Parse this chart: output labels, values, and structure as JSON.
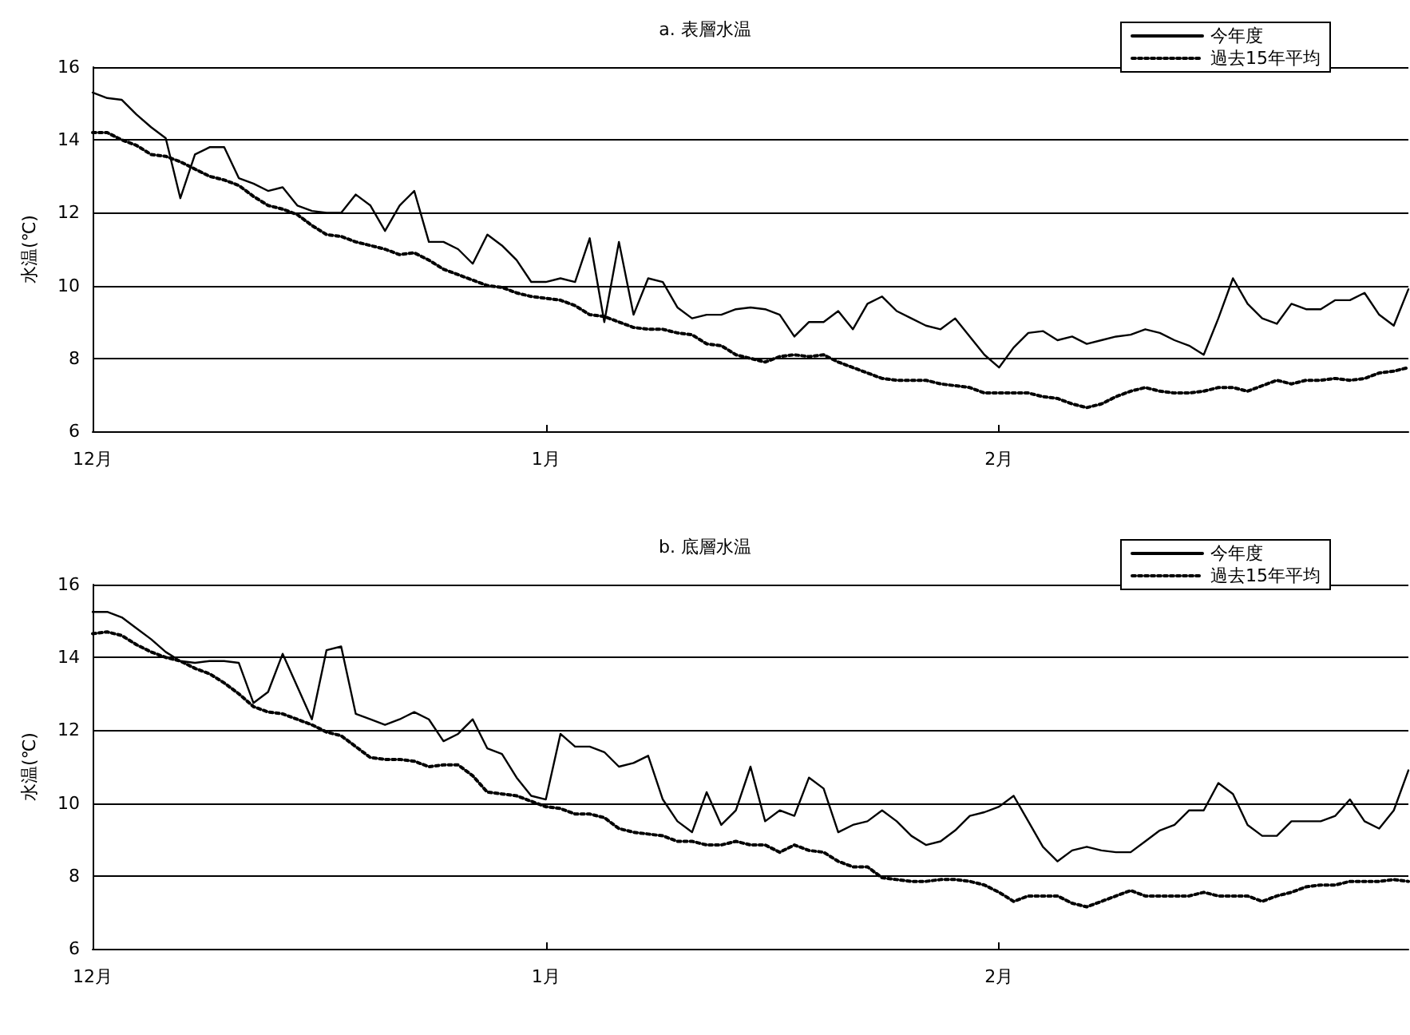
{
  "chart_data": [
    {
      "type": "line",
      "title": "a. 表層水温",
      "ylabel": "水温(℃)",
      "ylim": [
        6,
        16
      ],
      "yticks": [
        6,
        8,
        10,
        12,
        14,
        16
      ],
      "categories": [
        "12月",
        null,
        null,
        null,
        null,
        null,
        null,
        null,
        null,
        null,
        null,
        null,
        null,
        null,
        null,
        null,
        null,
        null,
        null,
        null,
        null,
        null,
        null,
        null,
        null,
        null,
        null,
        null,
        null,
        null,
        null,
        "1月",
        null,
        null,
        null,
        null,
        null,
        null,
        null,
        null,
        null,
        null,
        null,
        null,
        null,
        null,
        null,
        null,
        null,
        null,
        null,
        null,
        null,
        null,
        null,
        null,
        null,
        null,
        null,
        null,
        null,
        null,
        "2月",
        null,
        null,
        null,
        null,
        null,
        null,
        null,
        null,
        null,
        null,
        null,
        null,
        null,
        null,
        null,
        null,
        null,
        null,
        null,
        null,
        null,
        null,
        null,
        null,
        null,
        null,
        null,
        null
      ],
      "grid": "y",
      "legend": "top right",
      "marker": "none",
      "series": [
        {
          "name": "今年度",
          "color": "#000000",
          "line_style": "solid",
          "values": [
            15.3,
            15.15,
            15.1,
            14.7,
            14.35,
            14.05,
            12.4,
            13.6,
            13.8,
            13.8,
            12.95,
            12.8,
            12.6,
            12.7,
            12.2,
            12.05,
            12.0,
            12.0,
            12.5,
            12.2,
            11.5,
            12.2,
            12.6,
            11.2,
            11.2,
            11.0,
            10.6,
            11.4,
            11.1,
            10.7,
            10.1,
            10.1,
            10.2,
            10.1,
            11.3,
            9.0,
            11.2,
            9.2,
            10.2,
            10.1,
            9.4,
            9.1,
            9.2,
            9.2,
            9.35,
            9.4,
            9.35,
            9.2,
            8.6,
            9.0,
            9.0,
            9.3,
            8.8,
            9.5,
            9.7,
            9.3,
            9.1,
            8.9,
            8.8,
            9.1,
            8.6,
            8.1,
            7.75,
            8.3,
            8.7,
            8.75,
            8.5,
            8.6,
            8.4,
            8.5,
            8.6,
            8.65,
            8.8,
            8.7,
            8.5,
            8.35,
            8.1,
            9.1,
            10.2,
            9.5,
            9.1,
            8.95,
            9.5,
            9.35,
            9.35,
            9.6,
            9.6,
            9.8,
            9.2,
            8.9,
            9.9
          ]
        },
        {
          "name": "過去15年平均",
          "color": "#000000",
          "line_style": "dotted",
          "values": [
            14.2,
            14.2,
            14.0,
            13.85,
            13.6,
            13.55,
            13.4,
            13.2,
            13.0,
            12.9,
            12.75,
            12.45,
            12.2,
            12.1,
            11.95,
            11.65,
            11.4,
            11.35,
            11.2,
            11.1,
            11.0,
            10.85,
            10.9,
            10.7,
            10.45,
            10.3,
            10.15,
            10.0,
            9.95,
            9.8,
            9.7,
            9.65,
            9.6,
            9.45,
            9.2,
            9.15,
            9.0,
            8.85,
            8.8,
            8.8,
            8.7,
            8.65,
            8.4,
            8.35,
            8.1,
            8.0,
            7.9,
            8.05,
            8.1,
            8.05,
            8.1,
            7.9,
            7.75,
            7.6,
            7.45,
            7.4,
            7.4,
            7.4,
            7.3,
            7.25,
            7.2,
            7.05,
            7.05,
            7.05,
            7.05,
            6.95,
            6.9,
            6.75,
            6.65,
            6.75,
            6.95,
            7.1,
            7.2,
            7.1,
            7.05,
            7.05,
            7.1,
            7.2,
            7.2,
            7.1,
            7.25,
            7.4,
            7.3,
            7.4,
            7.4,
            7.45,
            7.4,
            7.45,
            7.6,
            7.65,
            7.75
          ]
        }
      ]
    },
    {
      "type": "line",
      "title": "b. 底層水温",
      "ylabel": "水温(℃)",
      "ylim": [
        6,
        16
      ],
      "yticks": [
        6,
        8,
        10,
        12,
        14,
        16
      ],
      "categories": [
        "12月",
        null,
        null,
        null,
        null,
        null,
        null,
        null,
        null,
        null,
        null,
        null,
        null,
        null,
        null,
        null,
        null,
        null,
        null,
        null,
        null,
        null,
        null,
        null,
        null,
        null,
        null,
        null,
        null,
        null,
        null,
        "1月",
        null,
        null,
        null,
        null,
        null,
        null,
        null,
        null,
        null,
        null,
        null,
        null,
        null,
        null,
        null,
        null,
        null,
        null,
        null,
        null,
        null,
        null,
        null,
        null,
        null,
        null,
        null,
        null,
        null,
        null,
        "2月",
        null,
        null,
        null,
        null,
        null,
        null,
        null,
        null,
        null,
        null,
        null,
        null,
        null,
        null,
        null,
        null,
        null,
        null,
        null,
        null,
        null,
        null,
        null,
        null,
        null,
        null,
        null,
        null
      ],
      "grid": "y",
      "legend": "top right",
      "marker": "none",
      "series": [
        {
          "name": "今年度",
          "color": "#000000",
          "line_style": "solid",
          "values": [
            15.25,
            15.25,
            15.1,
            14.8,
            14.5,
            14.15,
            13.9,
            13.85,
            13.9,
            13.9,
            13.85,
            12.75,
            13.05,
            14.1,
            13.2,
            12.3,
            14.2,
            14.3,
            12.45,
            12.3,
            12.15,
            12.3,
            12.5,
            12.3,
            11.7,
            11.9,
            12.3,
            11.5,
            11.35,
            10.7,
            10.2,
            10.1,
            11.9,
            11.55,
            11.55,
            11.4,
            11.0,
            11.1,
            11.3,
            10.1,
            9.5,
            9.2,
            10.3,
            9.4,
            9.8,
            11.0,
            9.5,
            9.8,
            9.65,
            10.7,
            10.4,
            9.2,
            9.4,
            9.5,
            9.8,
            9.5,
            9.1,
            8.85,
            8.95,
            9.25,
            9.65,
            9.75,
            9.9,
            10.2,
            9.5,
            8.8,
            8.4,
            8.7,
            8.8,
            8.7,
            8.65,
            8.65,
            8.95,
            9.25,
            9.4,
            9.8,
            9.8,
            10.55,
            10.25,
            9.4,
            9.1,
            9.1,
            9.5,
            9.5,
            9.5,
            9.65,
            10.1,
            9.5,
            9.3,
            9.8,
            10.9
          ]
        },
        {
          "name": "過去15年平均",
          "color": "#000000",
          "line_style": "dotted",
          "values": [
            14.65,
            14.7,
            14.6,
            14.35,
            14.15,
            14.0,
            13.9,
            13.7,
            13.55,
            13.3,
            13.0,
            12.65,
            12.5,
            12.45,
            12.3,
            12.15,
            11.95,
            11.85,
            11.55,
            11.25,
            11.2,
            11.2,
            11.15,
            11.0,
            11.05,
            11.05,
            10.75,
            10.3,
            10.25,
            10.2,
            10.05,
            9.9,
            9.85,
            9.7,
            9.7,
            9.6,
            9.3,
            9.2,
            9.15,
            9.1,
            8.95,
            8.95,
            8.85,
            8.85,
            8.95,
            8.85,
            8.85,
            8.65,
            8.85,
            8.7,
            8.65,
            8.4,
            8.25,
            8.25,
            7.95,
            7.9,
            7.85,
            7.85,
            7.9,
            7.9,
            7.85,
            7.75,
            7.55,
            7.3,
            7.45,
            7.45,
            7.45,
            7.25,
            7.15,
            7.3,
            7.45,
            7.6,
            7.45,
            7.45,
            7.45,
            7.45,
            7.55,
            7.45,
            7.45,
            7.45,
            7.3,
            7.45,
            7.55,
            7.7,
            7.75,
            7.75,
            7.85,
            7.85,
            7.85,
            7.9,
            7.85
          ]
        }
      ]
    }
  ]
}
